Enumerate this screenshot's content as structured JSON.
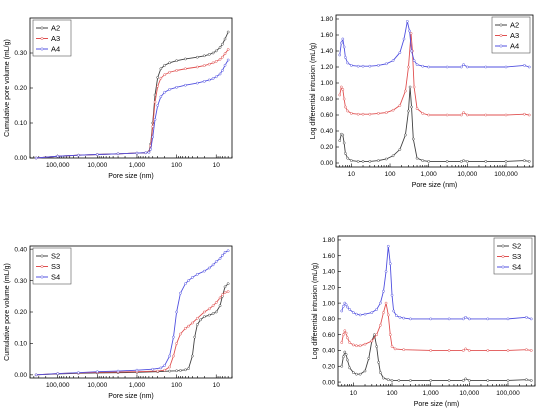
{
  "chart_data": [
    {
      "type": "line",
      "xlabel": "Pore size (nm)",
      "ylabel": "Cumulative pore volume (mL/g)",
      "x_scale": "log",
      "x_reversed": true,
      "xlim": [
        500000,
        4
      ],
      "ylim": [
        0,
        0.4
      ],
      "yticks": [
        0.0,
        0.1,
        0.2,
        0.3
      ],
      "ytick_labels": [
        "0.00",
        "0.10",
        "0.20",
        "0.30"
      ],
      "xticks": [
        100000,
        10000,
        1000,
        100,
        10
      ],
      "xtick_labels": [
        "100,000",
        "10,000",
        "1,000",
        "100",
        "10"
      ],
      "legend_position": "top-left",
      "series": [
        {
          "name": "A2",
          "color": "#404040",
          "x": [
            350000,
            100000,
            30000,
            10000,
            3000,
            1000,
            600,
            500,
            450,
            400,
            350,
            300,
            250,
            200,
            150,
            100,
            60,
            30,
            20,
            15,
            12,
            10,
            8,
            7,
            6,
            5
          ],
          "y": [
            0,
            0.005,
            0.008,
            0.01,
            0.012,
            0.014,
            0.015,
            0.018,
            0.04,
            0.1,
            0.18,
            0.23,
            0.255,
            0.265,
            0.272,
            0.278,
            0.283,
            0.288,
            0.292,
            0.296,
            0.3,
            0.306,
            0.316,
            0.325,
            0.34,
            0.36
          ]
        },
        {
          "name": "A3",
          "color": "#e05050",
          "x": [
            350000,
            100000,
            30000,
            10000,
            3000,
            1000,
            600,
            500,
            450,
            400,
            350,
            300,
            250,
            200,
            150,
            100,
            60,
            30,
            20,
            15,
            12,
            10,
            8,
            7,
            6,
            5
          ],
          "y": [
            0,
            0.005,
            0.008,
            0.01,
            0.012,
            0.014,
            0.015,
            0.017,
            0.035,
            0.09,
            0.16,
            0.205,
            0.228,
            0.238,
            0.245,
            0.25,
            0.255,
            0.26,
            0.264,
            0.268,
            0.272,
            0.276,
            0.282,
            0.288,
            0.298,
            0.31
          ]
        },
        {
          "name": "A4",
          "color": "#5050e0",
          "x": [
            350000,
            100000,
            30000,
            10000,
            3000,
            1000,
            600,
            500,
            450,
            400,
            350,
            300,
            250,
            200,
            150,
            100,
            60,
            30,
            20,
            15,
            12,
            10,
            8,
            7,
            6,
            5
          ],
          "y": [
            0,
            0.005,
            0.008,
            0.01,
            0.012,
            0.014,
            0.015,
            0.016,
            0.025,
            0.06,
            0.11,
            0.15,
            0.175,
            0.188,
            0.196,
            0.202,
            0.208,
            0.214,
            0.219,
            0.223,
            0.227,
            0.232,
            0.24,
            0.25,
            0.265,
            0.28
          ]
        }
      ]
    },
    {
      "type": "line",
      "xlabel": "Pore size (nm)",
      "ylabel": "Log differential intrusion (mL/g)",
      "x_scale": "log",
      "x_reversed": false,
      "xlim": [
        4,
        500000
      ],
      "ylim": [
        -0.05,
        1.85
      ],
      "yticks": [
        0.0,
        0.2,
        0.4,
        0.6,
        0.8,
        1.0,
        1.2,
        1.4,
        1.6,
        1.8
      ],
      "ytick_labels": [
        "0.00",
        "0.20",
        "0.40",
        "0.60",
        "0.80",
        "1.00",
        "1.20",
        "1.40",
        "1.60",
        "1.80"
      ],
      "xticks": [
        10,
        100,
        1000,
        10000,
        100000
      ],
      "xtick_labels": [
        "10",
        "100",
        "1,000",
        "10,000",
        "100,000"
      ],
      "legend_position": "top-right",
      "series": [
        {
          "name": "A2",
          "color": "#404040",
          "x": [
            5,
            5.5,
            6,
            6.5,
            7,
            8,
            10,
            15,
            20,
            30,
            50,
            80,
            120,
            180,
            250,
            300,
            330,
            360,
            400,
            500,
            700,
            1000,
            3000,
            7000,
            8000,
            10000,
            30000,
            100000,
            300000,
            400000
          ],
          "y": [
            0.28,
            0.36,
            0.35,
            0.25,
            0.12,
            0.06,
            0.03,
            0.02,
            0.02,
            0.02,
            0.03,
            0.05,
            0.09,
            0.17,
            0.35,
            0.65,
            0.95,
            0.7,
            0.3,
            0.06,
            0.03,
            0.02,
            0.02,
            0.02,
            0.03,
            0.02,
            0.02,
            0.02,
            0.03,
            0.02
          ]
        },
        {
          "name": "A3",
          "color": "#e05050",
          "x": [
            5,
            5.5,
            6,
            6.5,
            7,
            8,
            10,
            15,
            20,
            30,
            50,
            80,
            120,
            180,
            250,
            300,
            350,
            380,
            420,
            500,
            700,
            1000,
            3000,
            7000,
            8000,
            10000,
            30000,
            100000,
            300000,
            400000
          ],
          "y": [
            0.85,
            0.95,
            0.92,
            0.8,
            0.7,
            0.65,
            0.62,
            0.61,
            0.61,
            0.61,
            0.62,
            0.63,
            0.66,
            0.72,
            0.9,
            1.2,
            1.62,
            1.4,
            0.95,
            0.68,
            0.62,
            0.6,
            0.6,
            0.6,
            0.63,
            0.6,
            0.6,
            0.6,
            0.61,
            0.6
          ]
        },
        {
          "name": "A4",
          "color": "#5050e0",
          "x": [
            5,
            5.5,
            6,
            6.5,
            7,
            8,
            10,
            15,
            20,
            30,
            50,
            80,
            120,
            180,
            230,
            280,
            320,
            360,
            420,
            500,
            700,
            1000,
            3000,
            7000,
            8000,
            10000,
            30000,
            100000,
            300000,
            400000
          ],
          "y": [
            1.35,
            1.5,
            1.55,
            1.45,
            1.32,
            1.25,
            1.22,
            1.21,
            1.21,
            1.21,
            1.22,
            1.24,
            1.28,
            1.38,
            1.55,
            1.77,
            1.65,
            1.4,
            1.28,
            1.23,
            1.21,
            1.2,
            1.2,
            1.2,
            1.23,
            1.2,
            1.2,
            1.2,
            1.22,
            1.2
          ]
        }
      ]
    },
    {
      "type": "line",
      "xlabel": "Pore size (nm)",
      "ylabel": "Cumulative pore volume (mL/g)",
      "x_scale": "log",
      "x_reversed": true,
      "xlim": [
        500000,
        4
      ],
      "ylim": [
        -0.01,
        0.41
      ],
      "yticks": [
        0.0,
        0.1,
        0.2,
        0.3,
        0.4
      ],
      "ytick_labels": [
        "0.00",
        "0.10",
        "0.20",
        "0.30",
        "0.40"
      ],
      "xticks": [
        100000,
        10000,
        1000,
        100,
        10
      ],
      "xtick_labels": [
        "100,000",
        "10,000",
        "1,000",
        "100",
        "10"
      ],
      "legend_position": "top-left",
      "series": [
        {
          "name": "S2",
          "color": "#404040",
          "x": [
            350000,
            100000,
            30000,
            10000,
            3000,
            1000,
            300,
            150,
            100,
            80,
            60,
            50,
            40,
            35,
            30,
            25,
            20,
            15,
            12,
            10,
            8,
            7,
            6,
            5
          ],
          "y": [
            0,
            0.003,
            0.005,
            0.006,
            0.007,
            0.008,
            0.01,
            0.012,
            0.013,
            0.014,
            0.016,
            0.02,
            0.06,
            0.12,
            0.16,
            0.175,
            0.185,
            0.19,
            0.195,
            0.2,
            0.22,
            0.25,
            0.28,
            0.29
          ]
        },
        {
          "name": "S3",
          "color": "#e05050",
          "x": [
            350000,
            100000,
            30000,
            10000,
            3000,
            1000,
            300,
            200,
            150,
            120,
            100,
            80,
            60,
            50,
            40,
            30,
            20,
            15,
            12,
            10,
            8,
            7,
            6,
            5
          ],
          "y": [
            0,
            0.004,
            0.006,
            0.008,
            0.009,
            0.01,
            0.012,
            0.015,
            0.025,
            0.06,
            0.1,
            0.13,
            0.148,
            0.155,
            0.165,
            0.18,
            0.2,
            0.21,
            0.22,
            0.23,
            0.245,
            0.255,
            0.262,
            0.265
          ]
        },
        {
          "name": "S4",
          "color": "#5050e0",
          "x": [
            350000,
            100000,
            30000,
            10000,
            3000,
            1000,
            400,
            250,
            200,
            150,
            120,
            100,
            80,
            60,
            50,
            40,
            30,
            20,
            15,
            12,
            10,
            8,
            7,
            6,
            5
          ],
          "y": [
            0,
            0.004,
            0.007,
            0.01,
            0.012,
            0.015,
            0.018,
            0.022,
            0.03,
            0.06,
            0.12,
            0.2,
            0.26,
            0.29,
            0.3,
            0.31,
            0.32,
            0.33,
            0.34,
            0.35,
            0.36,
            0.37,
            0.38,
            0.39,
            0.395
          ]
        }
      ]
    },
    {
      "type": "line",
      "xlabel": "Pore size (nm)",
      "ylabel": "Log differential intrusion (mL/g)",
      "x_scale": "log",
      "x_reversed": false,
      "xlim": [
        4,
        500000
      ],
      "ylim": [
        -0.05,
        1.85
      ],
      "yticks": [
        0.0,
        0.2,
        0.4,
        0.6,
        0.8,
        1.0,
        1.2,
        1.4,
        1.6,
        1.8
      ],
      "ytick_labels": [
        "0.00",
        "0.20",
        "0.40",
        "0.60",
        "0.80",
        "1.00",
        "1.20",
        "1.40",
        "1.60",
        "1.80"
      ],
      "xticks": [
        10,
        100,
        1000,
        10000,
        100000
      ],
      "xtick_labels": [
        "10",
        "100",
        "1,000",
        "10,000",
        "100,000"
      ],
      "legend_position": "top-right",
      "series": [
        {
          "name": "S2",
          "color": "#404040",
          "x": [
            5,
            5.5,
            6,
            6.5,
            7,
            8,
            10,
            12,
            15,
            20,
            25,
            30,
            35,
            40,
            45,
            50,
            60,
            80,
            100,
            150,
            300,
            1000,
            3000,
            7000,
            8000,
            10000,
            30000,
            100000,
            300000,
            400000
          ],
          "y": [
            0.2,
            0.32,
            0.38,
            0.35,
            0.28,
            0.18,
            0.12,
            0.1,
            0.1,
            0.14,
            0.3,
            0.52,
            0.6,
            0.45,
            0.25,
            0.12,
            0.05,
            0.03,
            0.02,
            0.02,
            0.02,
            0.02,
            0.02,
            0.02,
            0.04,
            0.02,
            0.02,
            0.02,
            0.03,
            0.02
          ]
        },
        {
          "name": "S3",
          "color": "#e05050",
          "x": [
            5,
            5.5,
            6,
            6.5,
            7,
            8,
            10,
            12,
            15,
            20,
            30,
            40,
            50,
            60,
            70,
            80,
            90,
            100,
            120,
            200,
            1000,
            3000,
            7000,
            8000,
            10000,
            30000,
            100000,
            300000,
            400000
          ],
          "y": [
            0.5,
            0.6,
            0.65,
            0.62,
            0.56,
            0.5,
            0.47,
            0.46,
            0.46,
            0.48,
            0.52,
            0.6,
            0.72,
            0.88,
            1.0,
            0.85,
            0.6,
            0.45,
            0.42,
            0.41,
            0.4,
            0.4,
            0.4,
            0.42,
            0.4,
            0.4,
            0.4,
            0.41,
            0.4
          ]
        },
        {
          "name": "S4",
          "color": "#5050e0",
          "x": [
            5,
            5.5,
            6,
            6.5,
            7,
            8,
            10,
            12,
            15,
            20,
            30,
            40,
            50,
            60,
            70,
            80,
            90,
            100,
            110,
            130,
            160,
            200,
            300,
            1000,
            3000,
            7000,
            8000,
            10000,
            30000,
            100000,
            300000,
            400000
          ],
          "y": [
            0.9,
            0.96,
            1.0,
            0.98,
            0.95,
            0.92,
            0.88,
            0.86,
            0.85,
            0.86,
            0.88,
            0.92,
            1.0,
            1.15,
            1.4,
            1.72,
            1.5,
            1.1,
            0.9,
            0.84,
            0.82,
            0.81,
            0.8,
            0.8,
            0.8,
            0.8,
            0.82,
            0.8,
            0.8,
            0.8,
            0.82,
            0.8
          ]
        }
      ]
    }
  ]
}
